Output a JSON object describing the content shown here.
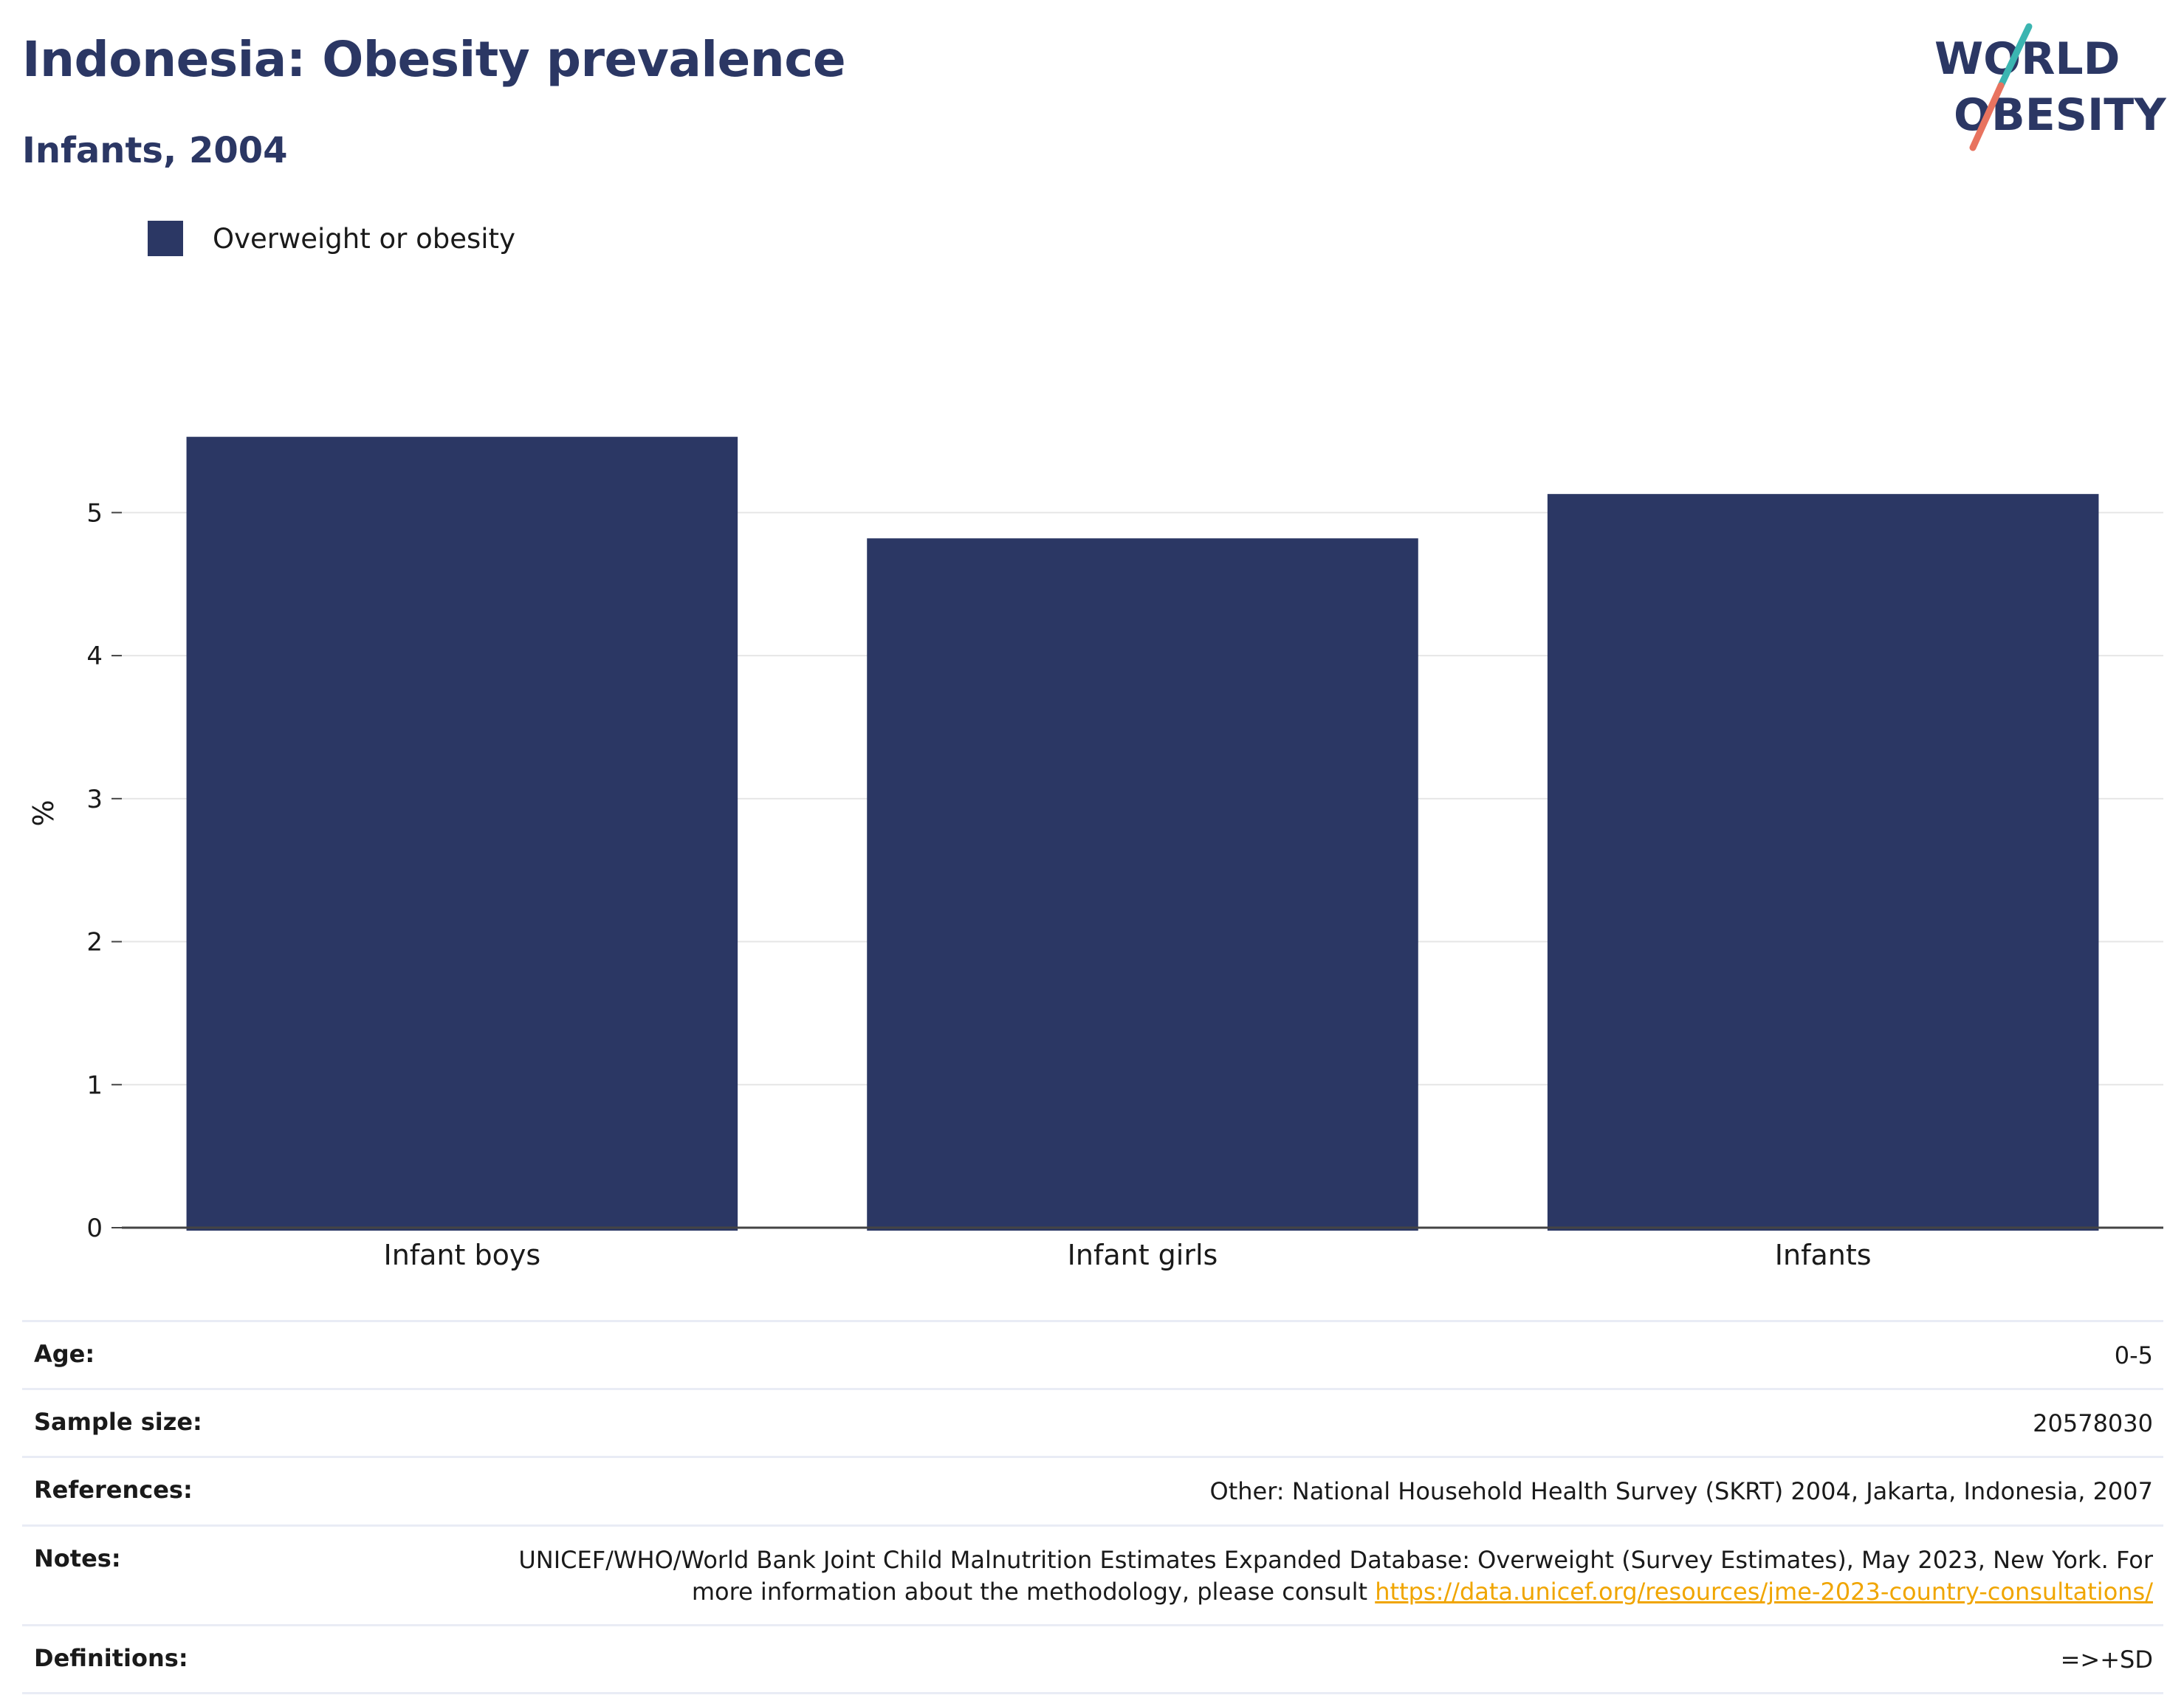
{
  "header": {
    "title": "Indonesia: Obesity prevalence",
    "subtitle": "Infants, 2004"
  },
  "logo": {
    "line1": "WORLD",
    "line2": "OBESITY",
    "accent_teal": "#3bb5b1",
    "accent_coral": "#e8735f"
  },
  "colors": {
    "bar": "#2b3764",
    "text_dark": "#2b3764",
    "gridline": "#e6e6e6",
    "link": "#f0a500"
  },
  "chart_data": {
    "type": "bar",
    "categories": [
      "Infant boys",
      "Infant girls",
      "Infants"
    ],
    "series": [
      {
        "name": "Overweight or obesity",
        "values": [
          5.53,
          4.82,
          5.13
        ]
      }
    ],
    "ylabel": "%",
    "ylim": [
      0,
      5.9
    ],
    "yticks": [
      0,
      1,
      2,
      3,
      4,
      5
    ],
    "grid": true,
    "legend_position": "top-left"
  },
  "info": {
    "age_label": "Age:",
    "age_value": "0-5",
    "sample_label": "Sample size:",
    "sample_value": "20578030",
    "references_label": "References:",
    "references_value": "Other: National Household Health Survey (SKRT) 2004, Jakarta, Indonesia, 2007",
    "notes_label": "Notes:",
    "notes_value": "UNICEF/WHO/World Bank Joint Child Malnutrition Estimates Expanded Database: Overweight (Survey Estimates), May 2023, New York. For more information about the methodology, please consult ",
    "notes_link": "https://data.unicef.org/resources/jme-2023-country-consultations/",
    "definitions_label": "Definitions:",
    "definitions_value": "=>+SD"
  }
}
